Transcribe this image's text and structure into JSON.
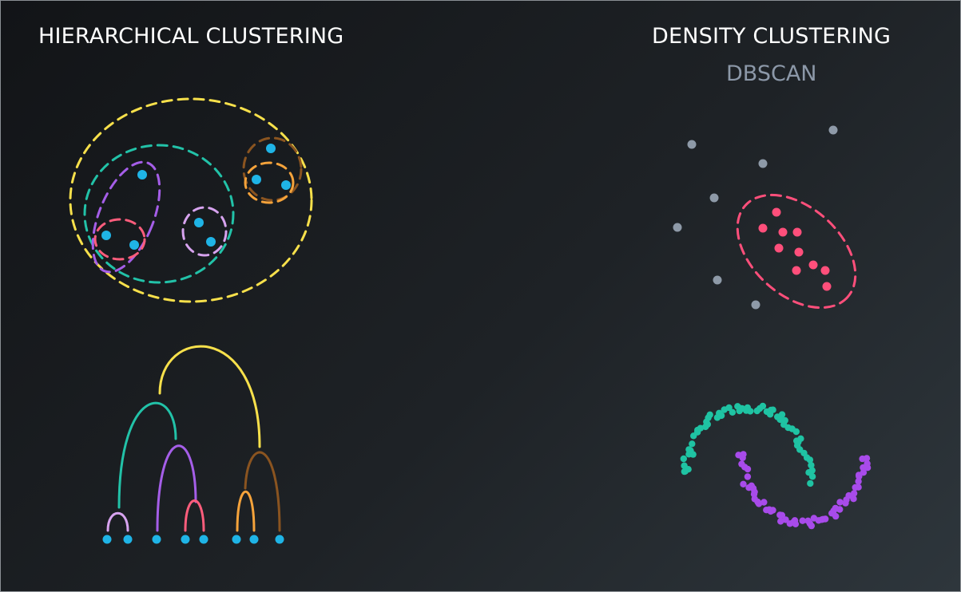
{
  "hierarchical": {
    "title": "HIERARCHICAL CLUSTERING"
  },
  "density": {
    "title": "DENSITY CLUSTERING",
    "subtitle": "DBSCAN"
  },
  "colors": {
    "point": "#1fb4e6",
    "noise": "#8e9aa8",
    "core": "#ff4f7b",
    "yellow": "#f7e04b",
    "teal": "#22c2a8",
    "purple": "#a55ee8",
    "pink": "#ff5d7c",
    "lavender": "#d7a3ef",
    "orange": "#f5a33b",
    "brown": "#8a5420",
    "moon_teal": "#1fc3a3",
    "moon_purple": "#a84bea"
  }
}
